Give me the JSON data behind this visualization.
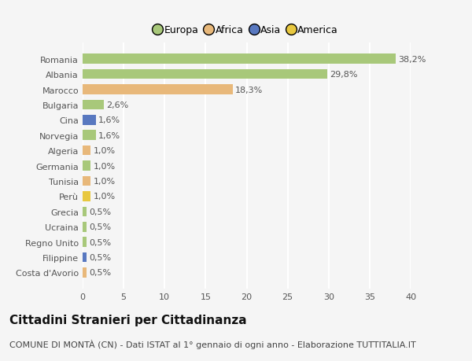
{
  "countries": [
    "Romania",
    "Albania",
    "Marocco",
    "Bulgaria",
    "Cina",
    "Norvegia",
    "Algeria",
    "Germania",
    "Tunisia",
    "Perù",
    "Grecia",
    "Ucraina",
    "Regno Unito",
    "Filippine",
    "Costa d'Avorio"
  ],
  "values": [
    38.2,
    29.8,
    18.3,
    2.6,
    1.6,
    1.6,
    1.0,
    1.0,
    1.0,
    1.0,
    0.5,
    0.5,
    0.5,
    0.5,
    0.5
  ],
  "labels": [
    "38,2%",
    "29,8%",
    "18,3%",
    "2,6%",
    "1,6%",
    "1,6%",
    "1,0%",
    "1,0%",
    "1,0%",
    "1,0%",
    "0,5%",
    "0,5%",
    "0,5%",
    "0,5%",
    "0,5%"
  ],
  "colors": [
    "#a8c87a",
    "#a8c87a",
    "#e8b87a",
    "#a8c87a",
    "#5878c0",
    "#a8c87a",
    "#e8b87a",
    "#a8c87a",
    "#e8b87a",
    "#e8c840",
    "#a8c87a",
    "#a8c87a",
    "#a8c87a",
    "#5878c0",
    "#e8b87a"
  ],
  "continent_colors": {
    "Europa": "#a8c87a",
    "Africa": "#e8b87a",
    "Asia": "#5878c0",
    "America": "#e8c840"
  },
  "title": "Cittadini Stranieri per Cittadinanza",
  "subtitle": "COMUNE DI MONTÀ (CN) - Dati ISTAT al 1° gennaio di ogni anno - Elaborazione TUTTITALIA.IT",
  "xlim": [
    0,
    40
  ],
  "xticks": [
    0,
    5,
    10,
    15,
    20,
    25,
    30,
    35,
    40
  ],
  "background_color": "#f5f5f5",
  "grid_color": "#ffffff",
  "bar_height": 0.65,
  "title_fontsize": 11,
  "subtitle_fontsize": 8,
  "label_fontsize": 8,
  "tick_fontsize": 8,
  "legend_fontsize": 9
}
